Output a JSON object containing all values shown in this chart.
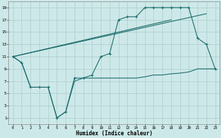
{
  "bg_color": "#cde8e8",
  "grid_color": "#aacccc",
  "line_color": "#1a6b6b",
  "xlim": [
    -0.5,
    23.5
  ],
  "ylim": [
    0,
    20
  ],
  "xticks": [
    0,
    1,
    2,
    3,
    4,
    5,
    6,
    7,
    8,
    9,
    10,
    11,
    12,
    13,
    14,
    15,
    16,
    17,
    18,
    19,
    20,
    21,
    22,
    23
  ],
  "yticks": [
    1,
    3,
    5,
    7,
    9,
    11,
    13,
    15,
    17,
    19
  ],
  "xlabel": "Humidex (Indice chaleur)",
  "curve_main_x": [
    0,
    1,
    2,
    3,
    4,
    5,
    6,
    7,
    8,
    9,
    10,
    11,
    12,
    13,
    14,
    15,
    16,
    17,
    18,
    19,
    20,
    21,
    22,
    23
  ],
  "curve_main_y": [
    11,
    10,
    6,
    6,
    6,
    1,
    2,
    7.5,
    7.5,
    8,
    11,
    11.5,
    17,
    17.5,
    17.5,
    19,
    19,
    19,
    19,
    19,
    19,
    14,
    13,
    9
  ],
  "curve_low_x": [
    0,
    1,
    2,
    3,
    4,
    5,
    6,
    7,
    8,
    9,
    10,
    11,
    12,
    13,
    14,
    15,
    16,
    17,
    18,
    19,
    20,
    21,
    22,
    23
  ],
  "curve_low_y": [
    11,
    10,
    6,
    6,
    6,
    1,
    2,
    7,
    7.5,
    7.5,
    7.5,
    7.5,
    7.5,
    7.5,
    7.5,
    7.7,
    8,
    8,
    8.2,
    8.3,
    8.5,
    9,
    9,
    9
  ],
  "line1_x": [
    0,
    18
  ],
  "line1_y": [
    11,
    17
  ],
  "line2_x": [
    0,
    22
  ],
  "line2_y": [
    11,
    18
  ]
}
